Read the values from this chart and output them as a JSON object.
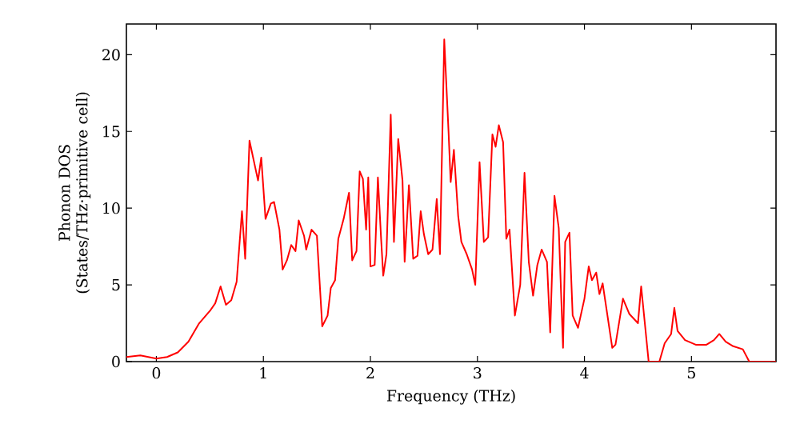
{
  "chart_data": {
    "type": "line",
    "xlabel": "Frequency (THz)",
    "ylabel": "Phonon DOS (States/THz·primitive cell)",
    "xlim": [
      -0.28,
      5.79
    ],
    "ylim": [
      0,
      22
    ],
    "xticks": [
      0,
      1,
      2,
      3,
      4,
      5
    ],
    "yticks": [
      0,
      5,
      10,
      15,
      20
    ],
    "grid": false,
    "marker": "none",
    "line_style": "solid",
    "series": [
      {
        "color": "#ff0000",
        "x": [
          -0.28,
          -0.15,
          0,
          0.1,
          0.2,
          0.3,
          0.4,
          0.5,
          0.55,
          0.6,
          0.65,
          0.7,
          0.75,
          0.8,
          0.83,
          0.87,
          0.95,
          0.98,
          1.02,
          1.07,
          1.1,
          1.15,
          1.18,
          1.22,
          1.26,
          1.3,
          1.33,
          1.38,
          1.4,
          1.45,
          1.5,
          1.55,
          1.6,
          1.63,
          1.67,
          1.7,
          1.75,
          1.8,
          1.83,
          1.87,
          1.9,
          1.93,
          1.96,
          1.98,
          2.0,
          2.04,
          2.07,
          2.1,
          2.12,
          2.15,
          2.19,
          2.22,
          2.26,
          2.3,
          2.32,
          2.36,
          2.4,
          2.44,
          2.47,
          2.5,
          2.54,
          2.58,
          2.62,
          2.65,
          2.69,
          2.73,
          2.75,
          2.78,
          2.82,
          2.85,
          2.9,
          2.95,
          2.98,
          3.02,
          3.06,
          3.1,
          3.14,
          3.17,
          3.2,
          3.24,
          3.27,
          3.3,
          3.35,
          3.4,
          3.44,
          3.48,
          3.52,
          3.56,
          3.6,
          3.65,
          3.68,
          3.72,
          3.76,
          3.8,
          3.82,
          3.86,
          3.89,
          3.94,
          4.0,
          4.04,
          4.07,
          4.11,
          4.14,
          4.17,
          4.26,
          4.29,
          4.36,
          4.42,
          4.5,
          4.53,
          4.6,
          4.7,
          4.75,
          4.81,
          4.84,
          4.87,
          4.94,
          5.04,
          5.14,
          5.21,
          5.26,
          5.32,
          5.39,
          5.48,
          5.54,
          5.79
        ],
        "values": [
          0.3,
          0.4,
          0.2,
          0.3,
          0.6,
          1.3,
          2.5,
          3.3,
          3.8,
          4.9,
          3.7,
          4.0,
          5.2,
          9.8,
          6.7,
          14.4,
          11.8,
          13.3,
          9.3,
          10.3,
          10.4,
          8.6,
          6.0,
          6.6,
          7.6,
          7.2,
          9.2,
          8.2,
          7.3,
          8.6,
          8.2,
          2.3,
          3.0,
          4.8,
          5.3,
          8.0,
          9.3,
          11.0,
          6.6,
          7.2,
          12.4,
          11.9,
          8.6,
          12.0,
          6.2,
          6.3,
          12.0,
          8.0,
          5.6,
          7.0,
          16.1,
          7.8,
          14.5,
          11.8,
          6.5,
          11.5,
          6.7,
          6.9,
          9.8,
          8.3,
          7.0,
          7.3,
          10.6,
          7.0,
          21.0,
          15.0,
          11.7,
          13.8,
          9.5,
          7.8,
          7.0,
          6.0,
          5.0,
          13.0,
          7.8,
          8.1,
          14.8,
          14.0,
          15.4,
          14.3,
          8.0,
          8.6,
          3.0,
          5.0,
          12.3,
          6.5,
          4.3,
          6.3,
          7.3,
          6.5,
          1.9,
          10.8,
          8.7,
          0.9,
          7.8,
          8.4,
          3.0,
          2.2,
          4.1,
          6.2,
          5.3,
          5.8,
          4.4,
          5.1,
          0.9,
          1.1,
          4.1,
          3.1,
          2.5,
          4.9,
          0,
          0,
          1.2,
          1.8,
          3.5,
          2.0,
          1.4,
          1.1,
          1.1,
          1.4,
          1.8,
          1.3,
          1.0,
          0.8,
          0,
          0
        ]
      }
    ]
  }
}
